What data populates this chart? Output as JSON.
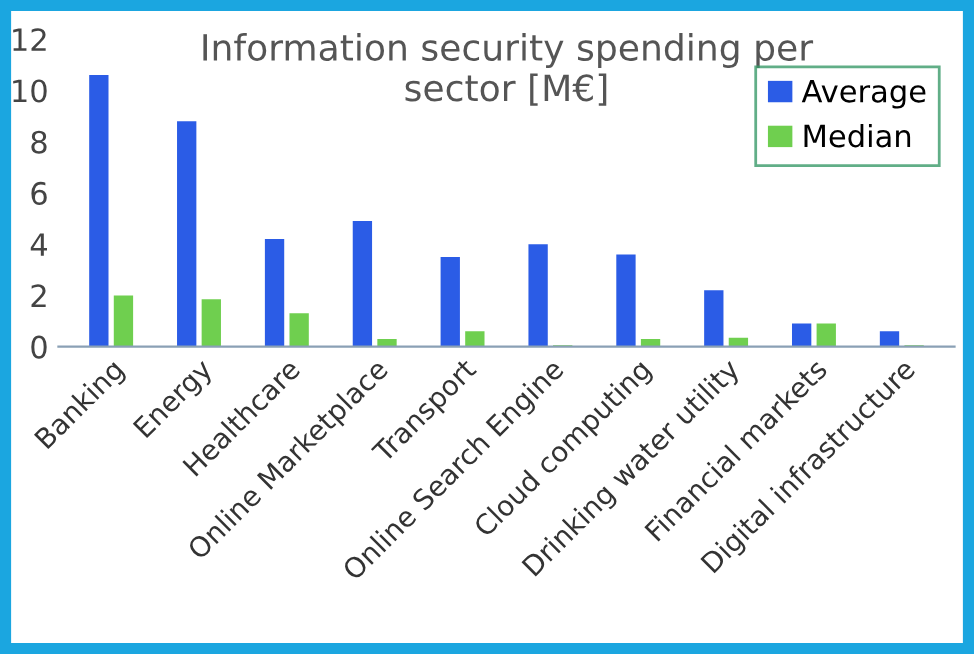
{
  "chart_data": {
    "type": "bar",
    "title": "Information security spending per\nsector [M€]",
    "categories": [
      "Banking",
      "Energy",
      "Healthcare",
      "Online Marketplace",
      "Transport",
      "Online Search Engine",
      "Cloud computing",
      "Drinking water utility",
      "Financial markets",
      "Digital infrastructure"
    ],
    "series": [
      {
        "name": "Average",
        "color": "#2b5ce6",
        "values": [
          10.6,
          8.8,
          4.2,
          4.9,
          3.5,
          4.0,
          3.6,
          2.2,
          0.9,
          0.6
        ]
      },
      {
        "name": "Median",
        "color": "#6fcf4f",
        "values": [
          2.0,
          1.85,
          1.3,
          0.3,
          0.6,
          0.05,
          0.3,
          0.35,
          0.9,
          0.05
        ]
      }
    ],
    "ylim": [
      0,
      12
    ],
    "yticks": [
      0,
      2,
      4,
      6,
      8,
      10,
      12
    ],
    "grid": false,
    "legend": "top right"
  }
}
